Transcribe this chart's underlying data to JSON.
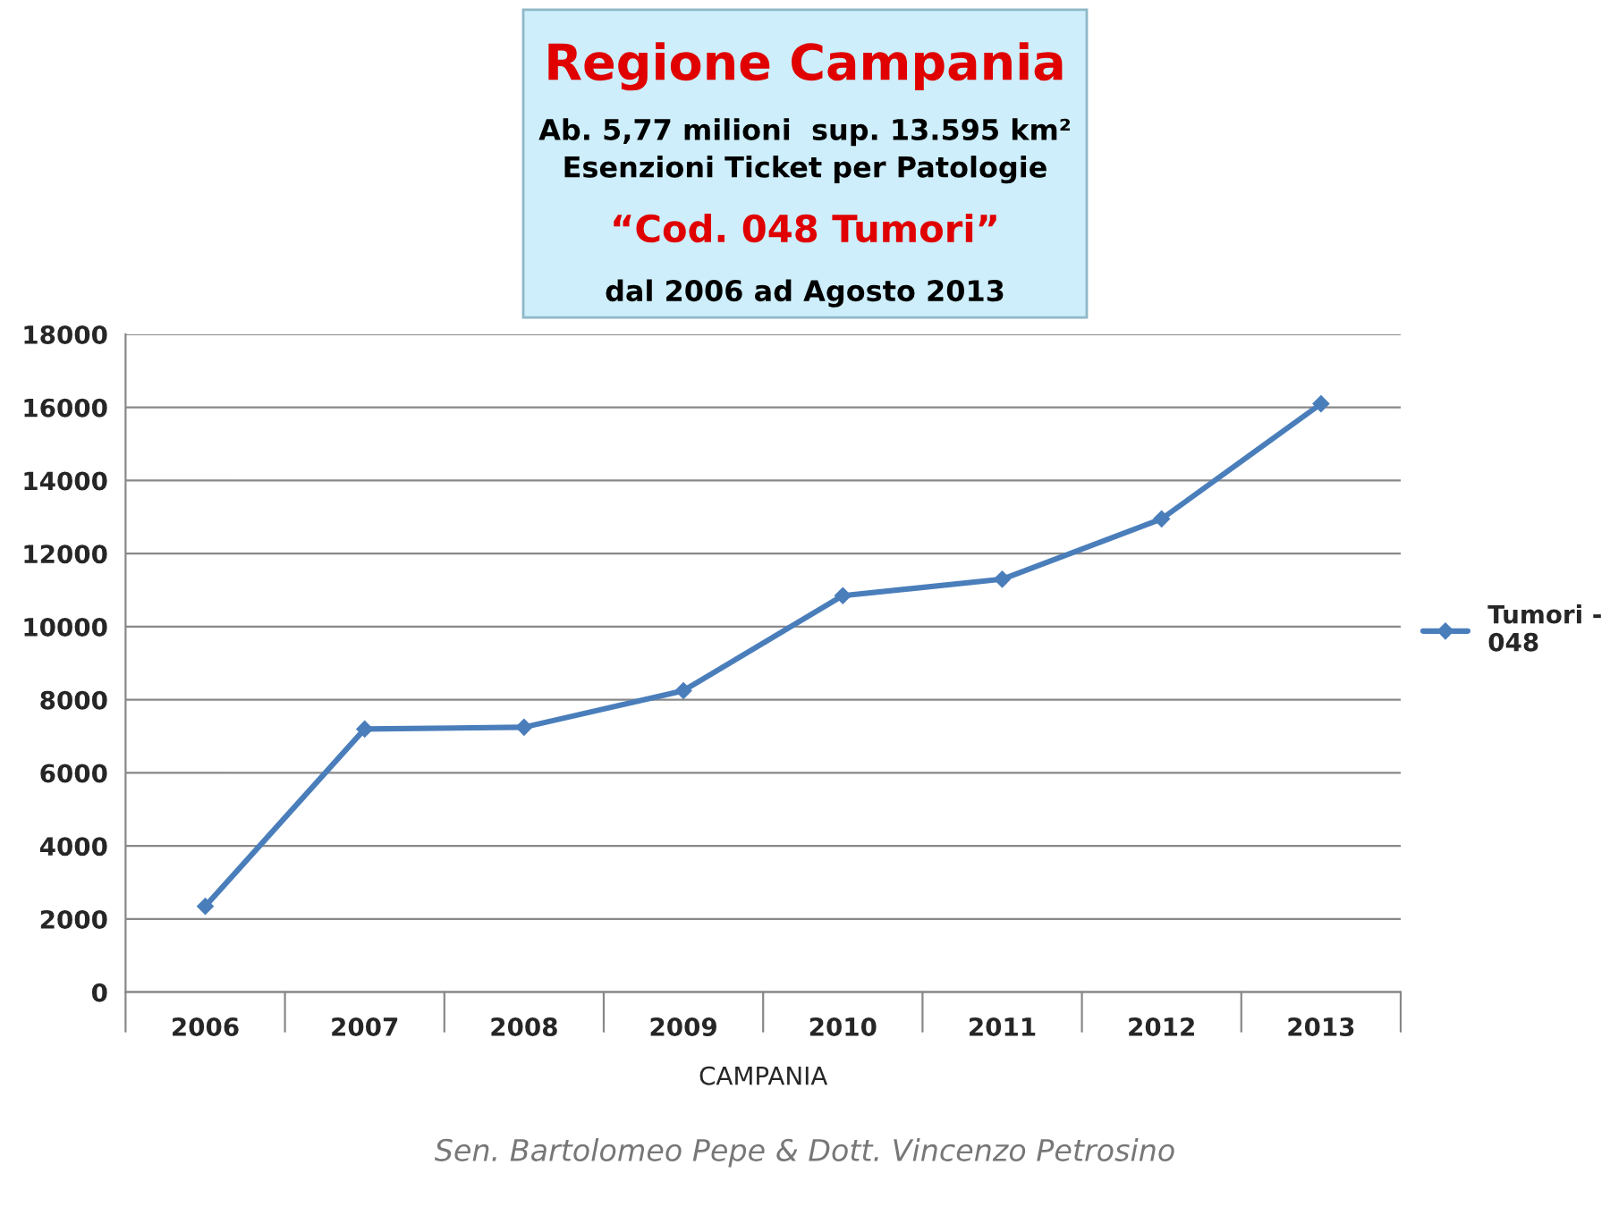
{
  "chart_data": {
    "type": "line",
    "title": "Regione Campania",
    "subtitle": "Ab. 5,77 milioni  sup. 13.595 km²\nEsenzioni Ticket per Patologie",
    "annotations": [
      "“Cod. 048 Tumori”",
      "dal 2006 ad Agosto 2013",
      "Sen. Bartolomeo Pepe & Dott. Vincenzo Petrosino"
    ],
    "xlabel": "CAMPANIA",
    "categories": [
      "2006",
      "2007",
      "2008",
      "2009",
      "2010",
      "2011",
      "2012",
      "2013"
    ],
    "series": [
      {
        "name": "Tumori -\n048",
        "color": "#4a7ebb",
        "values": [
          2350,
          7200,
          7250,
          8250,
          10850,
          11300,
          12950,
          16100
        ]
      }
    ],
    "ylim": [
      0,
      18000
    ],
    "yticks": [
      0,
      2000,
      4000,
      6000,
      8000,
      10000,
      12000,
      14000,
      16000,
      18000
    ],
    "grid": "y",
    "legend": "right",
    "marker": "diamond",
    "line_style": "solid"
  }
}
